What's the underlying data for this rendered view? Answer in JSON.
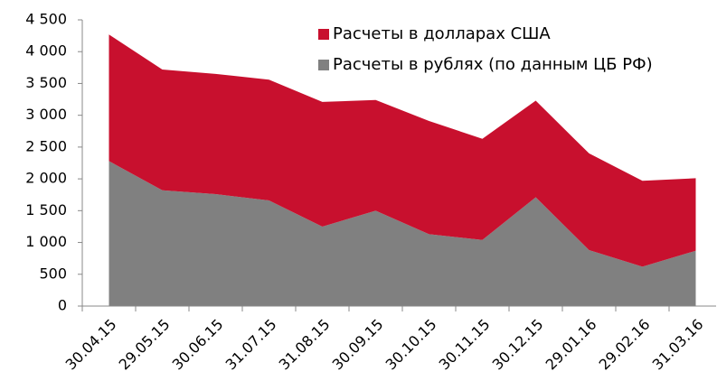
{
  "chart_data": {
    "type": "stacked_area",
    "categories": [
      "30.04.15",
      "29.05.15",
      "30.06.15",
      "31.07.15",
      "31.08.15",
      "30.09.15",
      "30.10.15",
      "30.11.15",
      "30.12.15",
      "29.01.16",
      "29.02.16",
      "31.03.16"
    ],
    "series": [
      {
        "name": "Расчеты в рублях (по данным ЦБ РФ)",
        "color": "#808080",
        "values": [
          2280,
          1820,
          1760,
          1660,
          1250,
          1500,
          1130,
          1040,
          1710,
          880,
          620,
          870
        ]
      },
      {
        "name": "Расчеты в долларах США",
        "color": "#c8102e",
        "values": [
          1990,
          1900,
          1890,
          1900,
          1960,
          1740,
          1780,
          1590,
          1520,
          1520,
          1350,
          1140
        ]
      }
    ],
    "ylim": [
      0,
      4500
    ],
    "yticks": [
      0,
      500,
      {
        "value": 1000,
        "label": "1 000"
      },
      {
        "value": 1500,
        "label": "1 500"
      },
      {
        "value": 2000,
        "label": "2 000"
      },
      {
        "value": 2500,
        "label": "2 500"
      },
      {
        "value": 3000,
        "label": "3 000"
      },
      {
        "value": 3500,
        "label": "3 500"
      },
      {
        "value": 4000,
        "label": "4 000"
      },
      {
        "value": 4500,
        "label": "4 500"
      }
    ],
    "grid": false,
    "legend": "top-right"
  }
}
